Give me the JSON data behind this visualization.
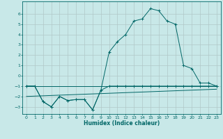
{
  "xlabel": "Humidex (Indice chaleur)",
  "bg_color": "#c8e8e8",
  "grid_color": "#b0c8c8",
  "line_color": "#006666",
  "xlim": [
    -0.5,
    23.5
  ],
  "ylim": [
    -3.7,
    7.2
  ],
  "xticks": [
    0,
    1,
    2,
    3,
    4,
    5,
    6,
    7,
    8,
    9,
    10,
    11,
    12,
    13,
    14,
    15,
    16,
    17,
    18,
    19,
    20,
    21,
    22,
    23
  ],
  "yticks": [
    -3,
    -2,
    -1,
    0,
    1,
    2,
    3,
    4,
    5,
    6
  ],
  "series_main_x": [
    0,
    1,
    2,
    3,
    4,
    5,
    6,
    7,
    8,
    9,
    10,
    11,
    12,
    13,
    14,
    15,
    16,
    17,
    18,
    19,
    20,
    21,
    22,
    23
  ],
  "series_main_y": [
    -1.0,
    -1.0,
    -2.5,
    -3.0,
    -2.0,
    -2.4,
    -2.3,
    -2.3,
    -3.3,
    -1.4,
    2.3,
    3.3,
    4.0,
    5.3,
    5.5,
    6.5,
    6.3,
    5.3,
    5.0,
    1.0,
    0.7,
    -0.7,
    -0.7,
    -1.0
  ],
  "series_lower_x": [
    0,
    1,
    2,
    3,
    4,
    5,
    6,
    7,
    8,
    9,
    10,
    11,
    12,
    13,
    14,
    15,
    16,
    17,
    18,
    19,
    20,
    21,
    22,
    23
  ],
  "series_lower_y": [
    -1.0,
    -1.0,
    -2.5,
    -3.0,
    -2.0,
    -2.4,
    -2.3,
    -2.3,
    -3.3,
    -1.4,
    -1.0,
    -1.0,
    -1.0,
    -1.0,
    -1.0,
    -1.0,
    -1.0,
    -1.0,
    -1.0,
    -1.0,
    -1.0,
    -1.0,
    -1.0,
    -1.0
  ],
  "ref_line1_x": [
    0,
    23
  ],
  "ref_line1_y": [
    -1.0,
    -1.0
  ],
  "ref_line2_x": [
    0,
    23
  ],
  "ref_line2_y": [
    -2.0,
    -1.3
  ]
}
